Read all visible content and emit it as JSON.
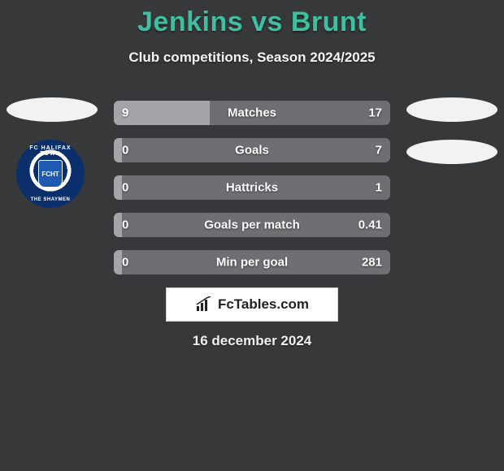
{
  "title": "Jenkins vs Brunt",
  "subtitle": "Club competitions, Season 2024/2025",
  "date": "16 december 2024",
  "brand": "FcTables.com",
  "colors": {
    "background": "#37383a",
    "title": "#3fbf9f",
    "bar_bg": "#6d6f72",
    "bar_fill": "#a3a5a8",
    "text": "#ffffff",
    "oval": "#f2f2f2",
    "logo_bg": "#ffffff"
  },
  "crest": {
    "top_text": "FC HALIFAX TOWN",
    "bottom_text": "THE SHAYMEN",
    "inner": "FCHT"
  },
  "stats": [
    {
      "label": "Matches",
      "left_val": "9",
      "right_val": "17",
      "left_pct": 34.6,
      "right_pct": 65.4
    },
    {
      "label": "Goals",
      "left_val": "0",
      "right_val": "7",
      "left_pct": 3.0,
      "right_pct": 97.0
    },
    {
      "label": "Hattricks",
      "left_val": "0",
      "right_val": "1",
      "left_pct": 3.0,
      "right_pct": 97.0
    },
    {
      "label": "Goals per match",
      "left_val": "0",
      "right_val": "0.41",
      "left_pct": 3.0,
      "right_pct": 97.0
    },
    {
      "label": "Min per goal",
      "left_val": "0",
      "right_val": "281",
      "left_pct": 3.0,
      "right_pct": 97.0
    }
  ]
}
